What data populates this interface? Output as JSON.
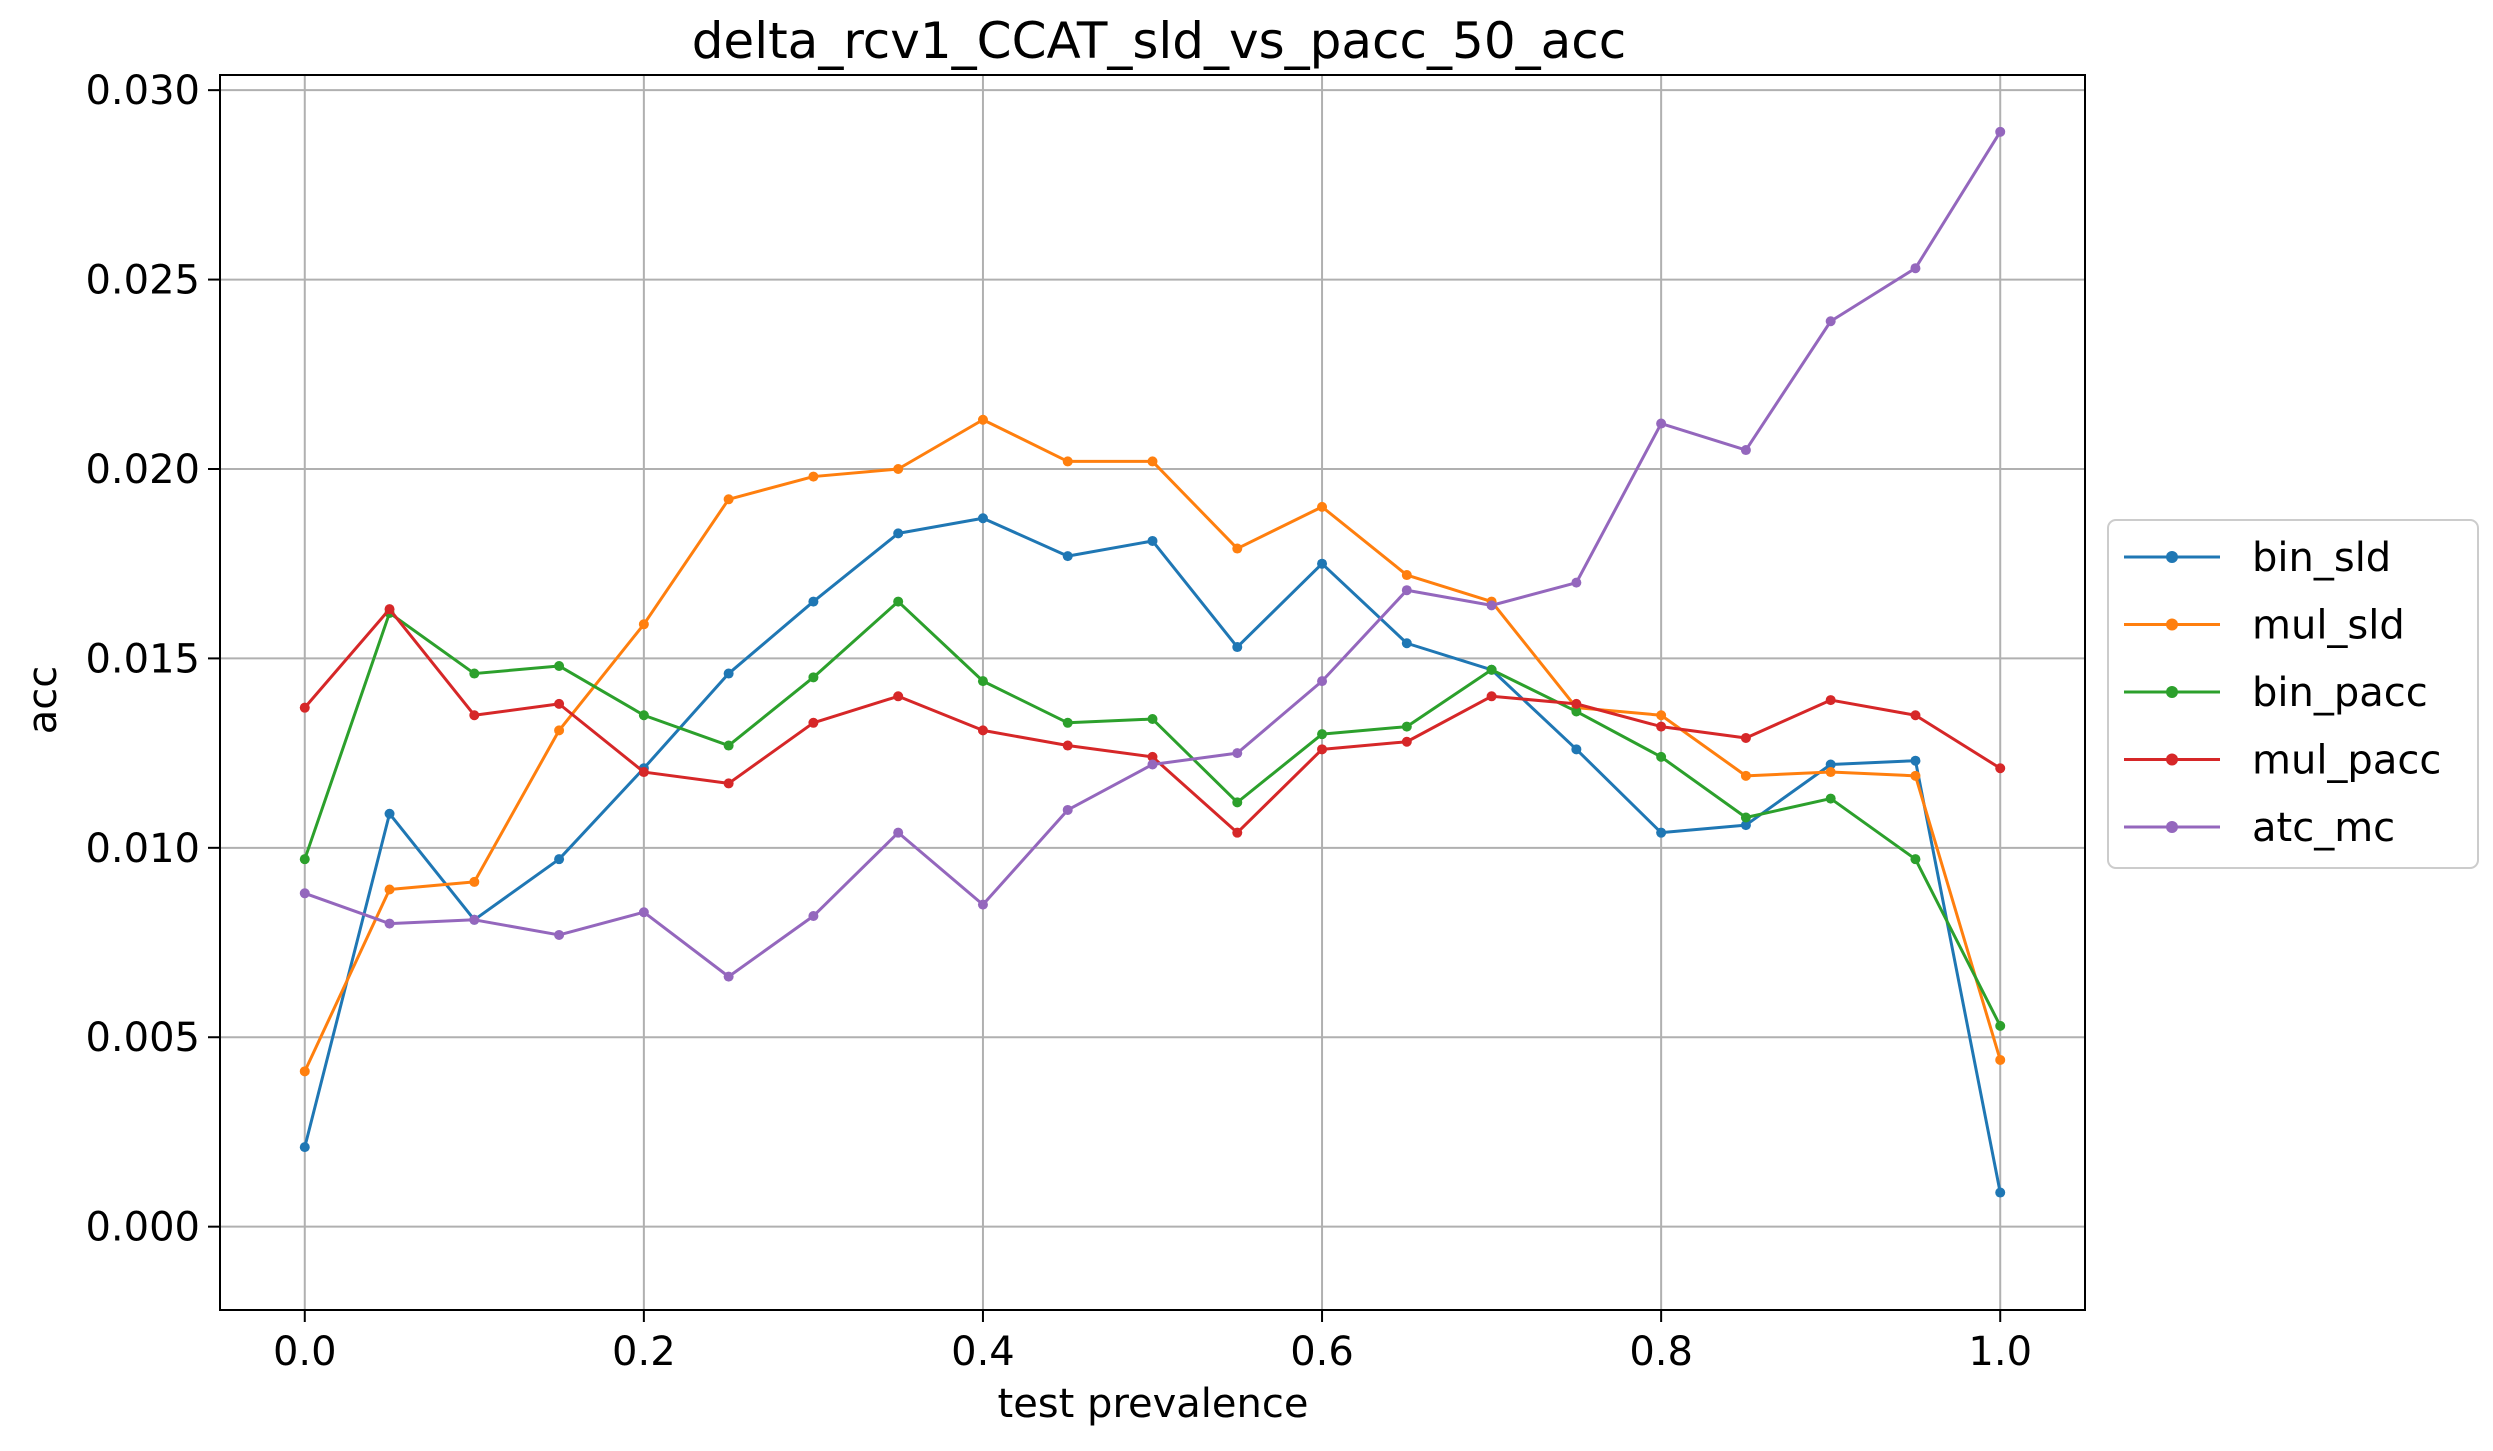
{
  "chart_data": {
    "type": "line",
    "title": "delta_rcv1_CCAT_sld_vs_pacc_50_acc",
    "xlabel": "test prevalence",
    "ylabel": "acc",
    "xlim": [
      -0.05,
      1.05
    ],
    "ylim": [
      -0.0022,
      0.0304
    ],
    "xticks": [
      "0.0",
      "0.2",
      "0.4",
      "0.6",
      "0.8",
      "1.0"
    ],
    "yticks": [
      "0.000",
      "0.005",
      "0.010",
      "0.015",
      "0.020",
      "0.025",
      "0.030"
    ],
    "grid": true,
    "legend_position": "center-right-outside",
    "x": [
      0.0,
      0.05,
      0.1,
      0.15,
      0.2,
      0.25,
      0.3,
      0.35,
      0.4,
      0.45,
      0.5,
      0.55,
      0.6,
      0.65,
      0.7,
      0.75,
      0.8,
      0.85,
      0.9,
      0.95,
      1.0
    ],
    "series": [
      {
        "name": "bin_sld",
        "color": "#1f77b4",
        "values": [
          0.0021,
          0.0109,
          0.0081,
          0.0097,
          0.0121,
          0.0146,
          0.0165,
          0.0183,
          0.0187,
          0.0177,
          0.0181,
          0.0153,
          0.0175,
          0.0154,
          0.0147,
          0.0126,
          0.0104,
          0.0106,
          0.0122,
          0.0123,
          0.0009
        ]
      },
      {
        "name": "mul_sld",
        "color": "#ff7f0e",
        "values": [
          0.0041,
          0.0089,
          0.0091,
          0.0131,
          0.0159,
          0.0192,
          0.0198,
          0.02,
          0.0213,
          0.0202,
          0.0202,
          0.0179,
          0.019,
          0.0172,
          0.0165,
          0.0137,
          0.0135,
          0.0119,
          0.012,
          0.0119,
          0.0044
        ]
      },
      {
        "name": "bin_pacc",
        "color": "#2ca02c",
        "values": [
          0.0097,
          0.0162,
          0.0146,
          0.0148,
          0.0135,
          0.0127,
          0.0145,
          0.0165,
          0.0144,
          0.0133,
          0.0134,
          0.0112,
          0.013,
          0.0132,
          0.0147,
          0.0136,
          0.0124,
          0.0108,
          0.0113,
          0.0097,
          0.0053
        ]
      },
      {
        "name": "mul_pacc",
        "color": "#d62728",
        "values": [
          0.0137,
          0.0163,
          0.0135,
          0.0138,
          0.012,
          0.0117,
          0.0133,
          0.014,
          0.0131,
          0.0127,
          0.0124,
          0.0104,
          0.0126,
          0.0128,
          0.014,
          0.0138,
          0.0132,
          0.0129,
          0.0139,
          0.0135,
          0.0121
        ]
      },
      {
        "name": "atc_mc",
        "color": "#9467bd",
        "values": [
          0.0088,
          0.008,
          0.0081,
          0.0077,
          0.0083,
          0.0066,
          0.0082,
          0.0104,
          0.0085,
          0.011,
          0.0122,
          0.0125,
          0.0144,
          0.0168,
          0.0164,
          0.017,
          0.0212,
          0.0205,
          0.0239,
          0.0253,
          0.0289
        ]
      }
    ]
  }
}
